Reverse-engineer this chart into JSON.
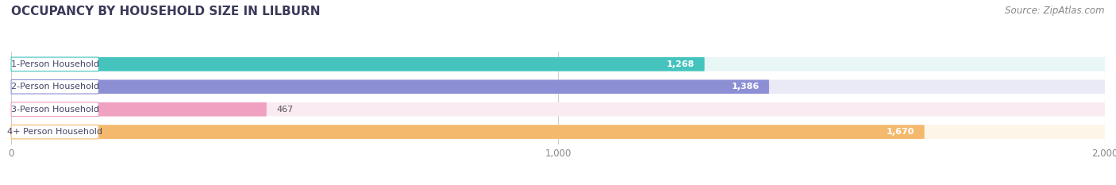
{
  "title": "OCCUPANCY BY HOUSEHOLD SIZE IN LILBURN",
  "source": "Source: ZipAtlas.com",
  "categories": [
    "1-Person Household",
    "2-Person Household",
    "3-Person Household",
    "4+ Person Household"
  ],
  "values": [
    1268,
    1386,
    467,
    1670
  ],
  "bar_colors": [
    "#45c4be",
    "#8c8fd4",
    "#f0a0c0",
    "#f5b96e"
  ],
  "bar_bg_colors": [
    "#e8f6f6",
    "#eaeaf6",
    "#faeaf2",
    "#fdf5e8"
  ],
  "xlim": [
    0,
    2000
  ],
  "xticks": [
    0,
    1000,
    2000
  ],
  "xtick_labels": [
    "0",
    "1,000",
    "2,000"
  ],
  "title_fontsize": 11,
  "source_fontsize": 8.5,
  "background_color": "#ffffff",
  "title_color": "#3a3a5a",
  "source_color": "#888888",
  "bar_label_bg": "#ffffff",
  "cat_label_fontsize": 8,
  "val_label_fontsize": 8
}
